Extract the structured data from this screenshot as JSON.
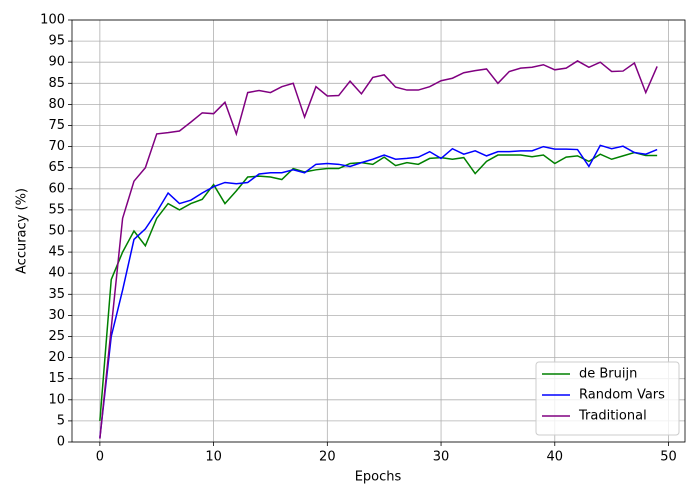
{
  "chart_data": {
    "type": "line",
    "x_label": "Epochs",
    "y_label": "Accuracy (%)",
    "x": [
      0,
      1,
      2,
      3,
      4,
      5,
      6,
      7,
      8,
      9,
      10,
      11,
      12,
      13,
      14,
      15,
      16,
      17,
      18,
      19,
      20,
      21,
      22,
      23,
      24,
      25,
      26,
      27,
      28,
      29,
      30,
      31,
      32,
      33,
      34,
      35,
      36,
      37,
      38,
      39,
      40,
      41,
      42,
      43,
      44,
      45,
      46,
      47,
      48,
      49
    ],
    "series": [
      {
        "name": "de Bruijn",
        "color": "#008000",
        "values": [
          5,
          38.5,
          45,
          50,
          46.5,
          53,
          56.5,
          55,
          56.5,
          57.5,
          61,
          56.5,
          59.5,
          62.8,
          63,
          62.8,
          62.2,
          64.8,
          64,
          64.5,
          64.8,
          64.8,
          66,
          66.2,
          65.8,
          67.5,
          65.5,
          66.2,
          65.8,
          67.2,
          67.4,
          67,
          67.4,
          63.6,
          66.5,
          68,
          68,
          68,
          67.6,
          68,
          66,
          67.5,
          67.8,
          66.5,
          68.2,
          67,
          67.8,
          68.6,
          67.9,
          67.9
        ]
      },
      {
        "name": "Random Vars",
        "color": "#0000ff",
        "values": [
          1,
          25,
          36,
          48,
          50.5,
          54.5,
          59,
          56.5,
          57.3,
          59,
          60.5,
          61.5,
          61.2,
          61.5,
          63.5,
          63.8,
          63.8,
          64.5,
          63.8,
          65.8,
          66,
          65.8,
          65.3,
          66.2,
          67,
          68,
          67,
          67.2,
          67.5,
          68.8,
          67.2,
          69.5,
          68.2,
          69,
          67.8,
          68.8,
          68.8,
          69,
          69,
          70,
          69.4,
          69.4,
          69.3,
          65.3,
          70.3,
          69.5,
          70.1,
          68.6,
          68.2,
          69.3
        ]
      },
      {
        "name": "Traditional",
        "color": "#800080",
        "values": [
          0.8,
          27,
          53,
          61.8,
          65,
          73,
          73.3,
          73.7,
          75.8,
          78,
          77.8,
          80.5,
          73,
          82.8,
          83.3,
          82.8,
          84.2,
          85,
          77,
          84.2,
          82,
          82.1,
          85.5,
          82.5,
          86.4,
          87,
          84.1,
          83.4,
          83.4,
          84.2,
          85.6,
          86.2,
          87.5,
          88,
          88.4,
          85,
          87.8,
          88.6,
          88.8,
          89.4,
          88.2,
          88.6,
          90.3,
          88.8,
          90,
          87.8,
          87.9,
          89.8,
          82.8,
          89
        ]
      }
    ],
    "xlim": [
      -2.45,
      51.45
    ],
    "xticks": [
      0,
      10,
      20,
      30,
      40,
      50
    ],
    "ylim": [
      0,
      100
    ],
    "yticks": [
      0,
      5,
      10,
      15,
      20,
      25,
      30,
      35,
      40,
      45,
      50,
      55,
      60,
      65,
      70,
      75,
      80,
      85,
      90,
      95,
      100
    ],
    "grid": true,
    "legend": "lower right"
  }
}
